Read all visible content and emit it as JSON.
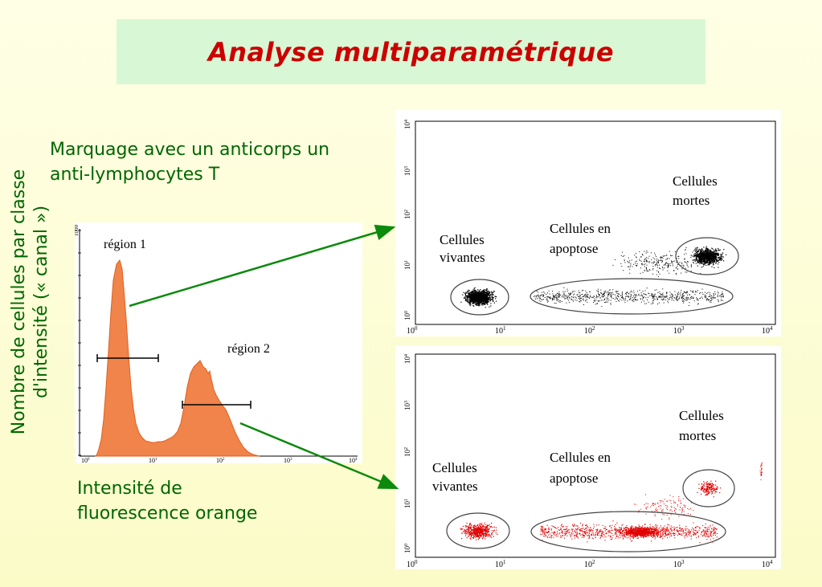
{
  "title": "Analyse multiparamétrique",
  "marquage_line1": "Marquage avec un anticorps un",
  "marquage_line2": "anti-lymphocytes T",
  "yaxis_line1": "Nombre de cellules par classe",
  "yaxis_line2": "d'intensité (« canal »)",
  "xaxis_line1": "Intensité de",
  "xaxis_line2": "fluorescence orange",
  "histogram": {
    "region1": "région 1",
    "region2": "région 2",
    "y_top_tick": "1000",
    "x_ticks": [
      "10",
      "10",
      "10",
      "10",
      "10"
    ],
    "x_tick_exps": [
      "0",
      "1",
      "2",
      "3",
      "4"
    ],
    "fill_color": "#f0844a"
  },
  "scatter_top": {
    "color": "#000000",
    "label_vivantes": [
      "Cellules",
      "vivantes"
    ],
    "label_apoptose": [
      "Cellules en",
      "apoptose"
    ],
    "label_mortes": [
      "Cellules",
      "mortes"
    ],
    "x_ticks": [
      "10",
      "10",
      "10",
      "10",
      "10"
    ],
    "x_tick_exps": [
      "0",
      "1",
      "2",
      "3",
      "4"
    ],
    "y_ticks": [
      "10",
      "10",
      "10",
      "10",
      "10"
    ],
    "y_tick_exps": [
      "0",
      "1",
      "2",
      "3",
      "4"
    ]
  },
  "scatter_bottom": {
    "color": "#e00000",
    "label_vivantes": [
      "Cellules",
      "vivantes"
    ],
    "label_apoptose": [
      "Cellules en",
      "apoptose"
    ],
    "label_mortes": [
      "Cellules",
      "mortes"
    ],
    "x_ticks": [
      "10",
      "10",
      "10",
      "10",
      "10"
    ],
    "x_tick_exps": [
      "0",
      "1",
      "2",
      "3",
      "4"
    ],
    "y_ticks": [
      "10",
      "10",
      "10",
      "10",
      "10"
    ],
    "y_tick_exps": [
      "0",
      "1",
      "2",
      "3",
      "4"
    ]
  },
  "arrow_color": "#0b8a0b"
}
